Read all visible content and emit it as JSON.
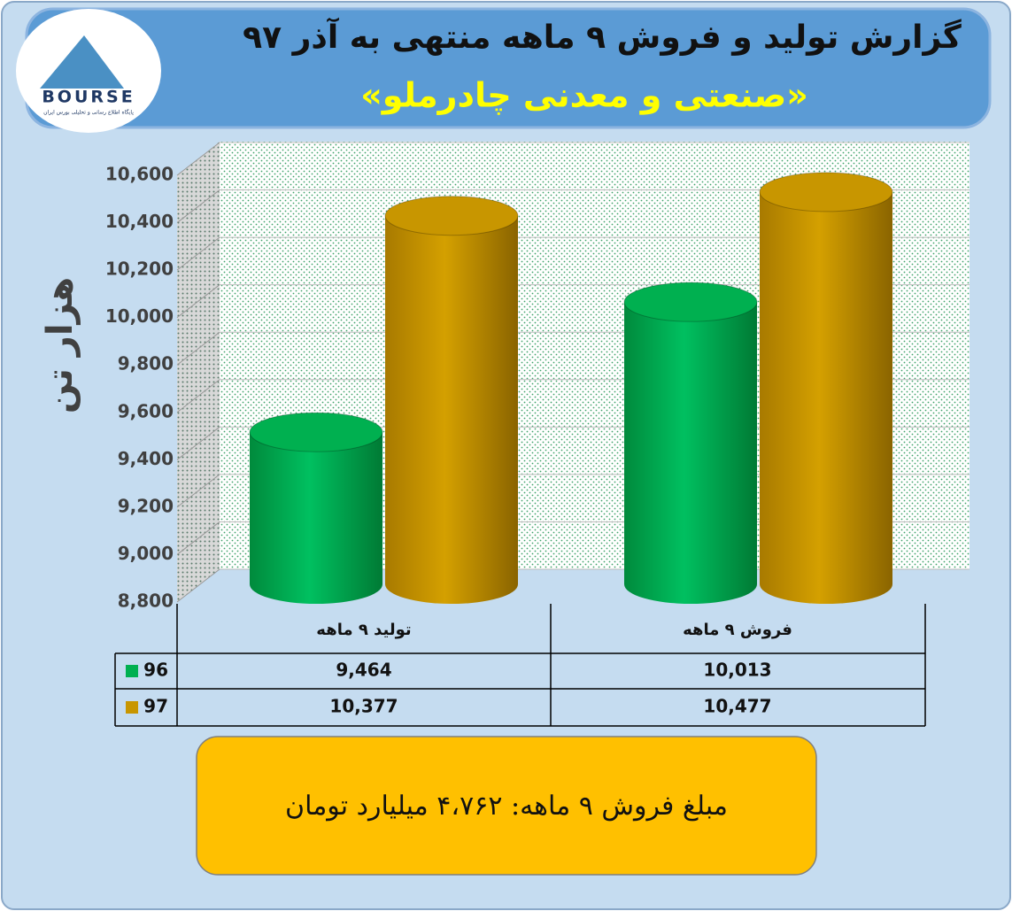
{
  "chart_data": {
    "type": "cylinder",
    "title": "گزارش تولید و فروش ۹ ماهه منتهی به آذر ۹۷",
    "subtitle": "«صنعتی و معدنی چادرملو»",
    "logo": "BOURSE",
    "logo_caption": "پایگاه اطلاع رسانی و تحلیلی بورس ایران",
    "y_label": "هزار تن",
    "categories": [
      "تولید ۹ ماهه",
      "فروش ۹ ماهه"
    ],
    "series": [
      {
        "name": "96",
        "color": "#00b050",
        "values": [
          9464,
          10013
        ],
        "value_labels": [
          "9,464",
          "10,013"
        ]
      },
      {
        "name": "97",
        "color": "#c89600",
        "values": [
          10377,
          10477
        ],
        "value_labels": [
          "10,377",
          "10,477"
        ]
      }
    ],
    "ylim": [
      8800,
      10600
    ],
    "yticks": [
      {
        "value": 8800,
        "label": "8,800"
      },
      {
        "value": 9000,
        "label": "9,000"
      },
      {
        "value": 9200,
        "label": "9,200"
      },
      {
        "value": 9400,
        "label": "9,400"
      },
      {
        "value": 9600,
        "label": "9,600"
      },
      {
        "value": 9800,
        "label": "9,800"
      },
      {
        "value": 10000,
        "label": "10,000"
      },
      {
        "value": 10200,
        "label": "10,200"
      },
      {
        "value": 10400,
        "label": "10,400"
      },
      {
        "value": 10600,
        "label": "10,600"
      }
    ],
    "grid": true,
    "annotation": "مبلغ فروش ۹ ماهه: ۴،۷۶۲ میلیارد تومان"
  }
}
